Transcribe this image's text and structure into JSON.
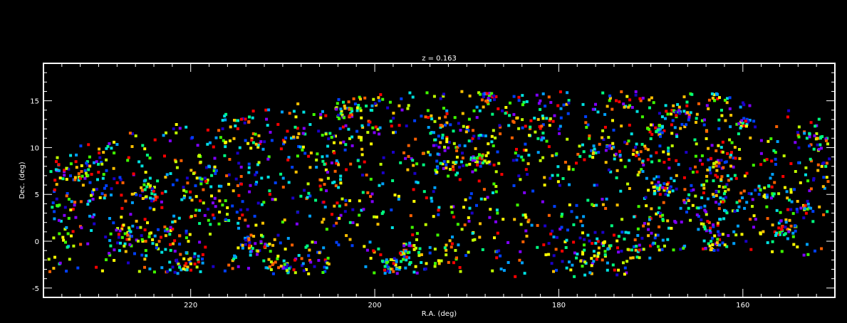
{
  "chart_data": {
    "type": "scatter",
    "title": "z = 0.163",
    "xlabel": "R.A. (deg)",
    "ylabel": "Dec. (deg)",
    "xlim": [
      236,
      150
    ],
    "ylim": [
      -6,
      19
    ],
    "x_major_ticks": [
      220,
      200,
      180,
      160
    ],
    "y_major_ticks": [
      -5,
      0,
      5,
      10,
      15
    ],
    "x_major_tick_labels": [
      "220",
      "200",
      "180",
      "160"
    ],
    "y_major_tick_labels": [
      "-5",
      "0",
      "5",
      "10",
      "15"
    ],
    "x_minor_step": 2,
    "y_minor_step": 1,
    "grid": false,
    "legend": "none",
    "background": "#000000",
    "axis_color": "#ffffff",
    "marker": "square",
    "point_count": 2400,
    "point_colors": [
      "#1a00c8",
      "#0040ff",
      "#00a0ff",
      "#00e0e0",
      "#00ff80",
      "#40ff00",
      "#c0ff00",
      "#ffff00",
      "#ffc000",
      "#ff6000",
      "#ff0000",
      "#8000ff"
    ],
    "points_note_seed": 163
  }
}
